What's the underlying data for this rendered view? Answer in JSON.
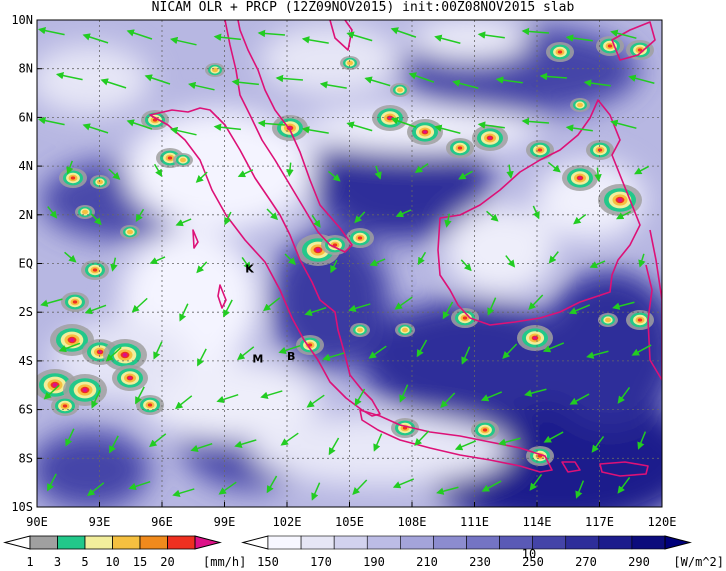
{
  "title": "NICAM OLR + PRCP (12Z09NOV2015) init:00Z08NOV2015 slab",
  "map": {
    "lon_labels": [
      "90E",
      "93E",
      "96E",
      "99E",
      "102E",
      "105E",
      "108E",
      "111E",
      "114E",
      "117E",
      "120E"
    ],
    "lat_labels": [
      "10N",
      "8N",
      "6N",
      "4N",
      "2N",
      "EQ",
      "2S",
      "4S",
      "6S",
      "8S",
      "10S"
    ],
    "lon_range": [
      90,
      120
    ],
    "lat_range": [
      -10,
      10
    ],
    "markers": [
      {
        "label": "K",
        "lon": 100.2,
        "lat": -0.2
      },
      {
        "label": "M",
        "lon": 100.6,
        "lat": -3.9
      },
      {
        "label": "B",
        "lon": 102.2,
        "lat": -3.8
      }
    ],
    "vector_ref_label": "10",
    "colors": {
      "wind": "#22cc22",
      "coast": "#dd1177",
      "grid": "#666666"
    }
  },
  "precip_bar": {
    "labels": [
      "1",
      "3",
      "5",
      "10",
      "15",
      "20"
    ],
    "unit": "[mm/h]",
    "colors": [
      "#a0a0a0",
      "#22c88a",
      "#f2ee9c",
      "#f5c040",
      "#f08a1c",
      "#ee3020",
      "#dd1188"
    ]
  },
  "olr_bar": {
    "labels": [
      "150",
      "170",
      "190",
      "210",
      "230",
      "250",
      "270",
      "290"
    ],
    "unit": "[W/m^2]",
    "colors": [
      "#f7f7ff",
      "#e6e6f5",
      "#d2d2ee",
      "#bcbce5",
      "#a4a4da",
      "#8c8ccf",
      "#7474c4",
      "#5a5ab6",
      "#4444a8",
      "#2e2e9a",
      "#1c1c8c",
      "#0c0c7c"
    ]
  }
}
